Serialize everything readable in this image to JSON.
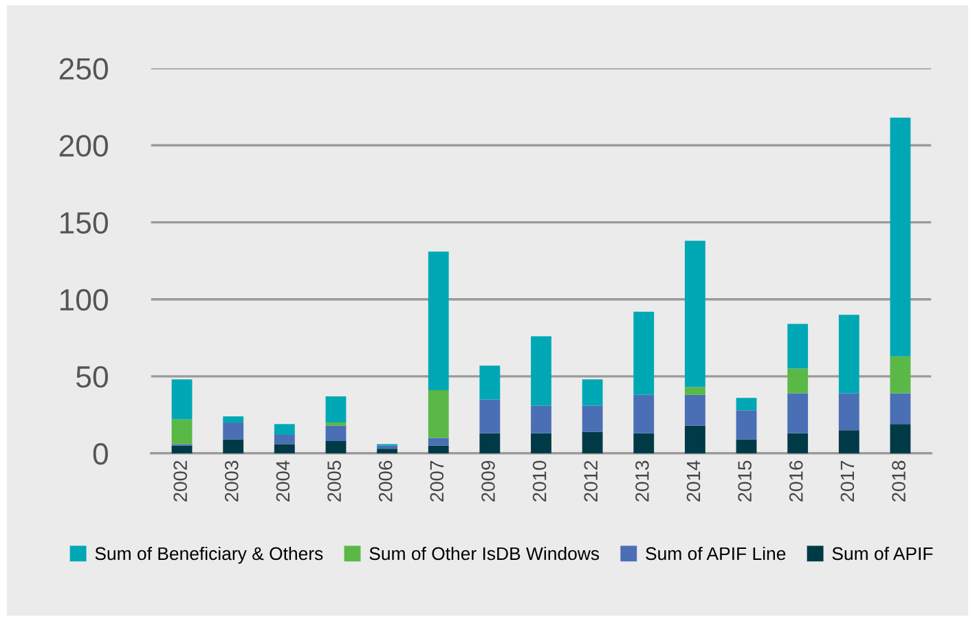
{
  "chart_data": {
    "type": "bar",
    "stacked": true,
    "categories": [
      "2002",
      "2003",
      "2004",
      "2005",
      "2006",
      "2007",
      "2009",
      "2010",
      "2012",
      "2013",
      "2014",
      "2015",
      "2016",
      "2017",
      "2018"
    ],
    "series": [
      {
        "name": "Sum of APIF",
        "color": "#003a47",
        "values": [
          5,
          9,
          6,
          8,
          3,
          5,
          13,
          13,
          14,
          13,
          18,
          9,
          13,
          15,
          19
        ]
      },
      {
        "name": "Sum of APIF Line",
        "color": "#4a6fb5",
        "values": [
          1,
          11,
          6,
          10,
          2,
          5,
          22,
          18,
          17,
          25,
          20,
          19,
          26,
          24,
          20
        ]
      },
      {
        "name": "Sum of Other IsDB Windows",
        "color": "#5ab847",
        "values": [
          16,
          0,
          0,
          2,
          0,
          31,
          0,
          0,
          0,
          0,
          5,
          0,
          16,
          0,
          24
        ]
      },
      {
        "name": "Sum of Beneficiary & Others",
        "color": "#00a8b5",
        "values": [
          26,
          4,
          7,
          17,
          1,
          90,
          22,
          45,
          17,
          54,
          95,
          8,
          29,
          51,
          155
        ]
      }
    ],
    "ylim": [
      0,
      250
    ],
    "yticks": [
      0,
      50,
      100,
      150,
      200,
      250
    ],
    "grid": "y",
    "legend": "bottom"
  }
}
